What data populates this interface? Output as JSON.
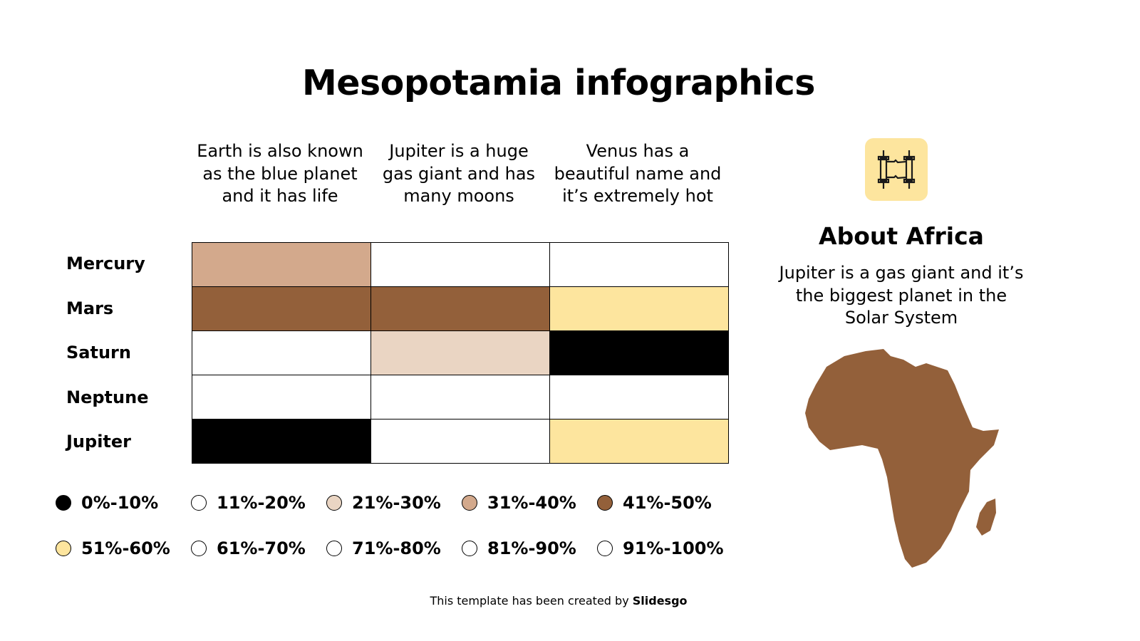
{
  "title": "Mesopotamia infographics",
  "chart_data": {
    "type": "heatmap",
    "columns": [
      "Earth is also known as the blue planet and it has life",
      "Jupiter is a huge gas giant and has many moons",
      "Venus has a beautiful name and it’s extremely hot"
    ],
    "rows": [
      "Mercury",
      "Mars",
      "Saturn",
      "Neptune",
      "Jupiter"
    ],
    "cells": [
      [
        "#d3a98c",
        "#ffffff",
        "#ffffff"
      ],
      [
        "#93603a",
        "#93603a",
        "#fde59e"
      ],
      [
        "#ffffff",
        "#ead5c3",
        "#000000"
      ],
      [
        "#ffffff",
        "#ffffff",
        "#ffffff"
      ],
      [
        "#000000",
        "#ffffff",
        "#fde59e"
      ]
    ],
    "legend": [
      {
        "label": "0%-10%",
        "color": "#000000"
      },
      {
        "label": "11%-20%",
        "color": "#ffffff"
      },
      {
        "label": "21%-30%",
        "color": "#ead5c3"
      },
      {
        "label": "31%-40%",
        "color": "#d3a98c"
      },
      {
        "label": "41%-50%",
        "color": "#93603a"
      },
      {
        "label": "51%-60%",
        "color": "#fde59e"
      },
      {
        "label": "61%-70%",
        "color": "#ffffff"
      },
      {
        "label": "71%-80%",
        "color": "#ffffff"
      },
      {
        "label": "81%-90%",
        "color": "#ffffff"
      },
      {
        "label": "91%-100%",
        "color": "#ffffff"
      }
    ]
  },
  "side": {
    "icon": "scroll-icon",
    "heading": "About Africa",
    "text": "Jupiter is a gas giant and it’s the biggest planet in the Solar System",
    "map": "africa-map",
    "map_color": "#93603a"
  },
  "footer": {
    "prefix": "This template has been created by ",
    "brand": "Slidesgo"
  }
}
